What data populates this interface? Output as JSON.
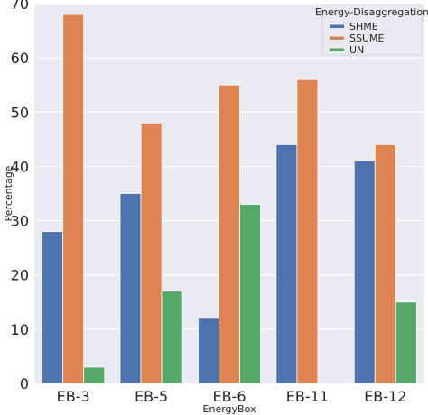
{
  "chart_data": {
    "type": "bar",
    "categories": [
      "EB-3",
      "EB-5",
      "EB-6",
      "EB-11",
      "EB-12"
    ],
    "series": [
      {
        "name": "SHME",
        "values": [
          28,
          35,
          12,
          44,
          41
        ],
        "color": "#4c72b0"
      },
      {
        "name": "SSUME",
        "values": [
          68,
          48,
          55,
          56,
          44
        ],
        "color": "#dd8452"
      },
      {
        "name": "UN",
        "values": [
          3,
          17,
          33,
          0,
          15
        ],
        "color": "#55a868"
      }
    ],
    "xlabel": "EnergyBox",
    "ylabel": "Percentage",
    "ylim": [
      0,
      70
    ],
    "yticks": [
      0,
      10,
      20,
      30,
      40,
      50,
      60,
      70
    ],
    "legend": {
      "title": "Energy-Disaggregation",
      "position": "top-right"
    },
    "grid": true,
    "background": "#eaeaf2",
    "grid_color": "#ffffff"
  }
}
